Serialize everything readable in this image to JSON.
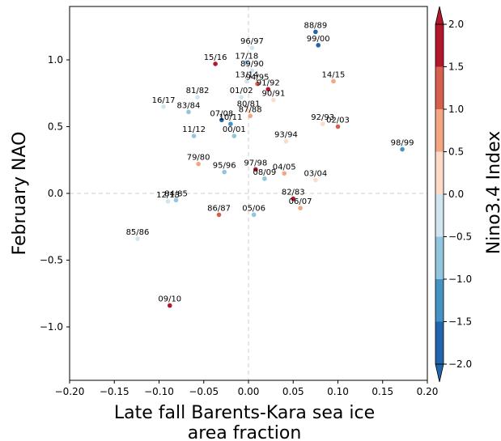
{
  "chart_data": {
    "type": "scatter",
    "title": "",
    "xlabel_line1": "Late fall Barents-Kara sea ice",
    "xlabel_line2": "area fraction",
    "ylabel": "February NAO",
    "colorbar_label": "Nino3.4 Index",
    "xlim": [
      -0.2,
      0.2
    ],
    "ylim": [
      -1.4,
      1.4
    ],
    "xticks": [
      -0.2,
      -0.15,
      -0.1,
      -0.05,
      0.0,
      0.05,
      0.1,
      0.15,
      0.2
    ],
    "xtick_labels": [
      "−0.20",
      "−0.15",
      "−0.10",
      "−0.05",
      "0.00",
      "0.05",
      "0.10",
      "0.15",
      "0.20"
    ],
    "yticks": [
      -1.0,
      -0.5,
      0.0,
      0.5,
      1.0
    ],
    "ytick_labels": [
      "−1.0",
      "−0.5",
      "0.0",
      "0.5",
      "1.0"
    ],
    "zero_lines": "dashed",
    "colorbar_ticks": [
      -2.0,
      -1.5,
      -1.0,
      -0.5,
      0.0,
      0.5,
      1.0,
      1.5,
      2.0
    ],
    "colorbar_tick_labels": [
      "−2.0",
      "−1.5",
      "−1.0",
      "−0.5",
      "0.0",
      "0.5",
      "1.0",
      "1.5",
      "2.0"
    ],
    "colorbar_colors": [
      "#2166ac",
      "#4393c3",
      "#92c5de",
      "#d1e5f0",
      "#fddbc7",
      "#f4a582",
      "#d6604d",
      "#b2182b"
    ],
    "colorbar_extend_low": "#2166ac",
    "colorbar_extend_high": "#b2182b",
    "points": [
      {
        "label": "88/89",
        "x": 0.075,
        "y": 1.21,
        "nino": -1.8
      },
      {
        "label": "99/00",
        "x": 0.078,
        "y": 1.11,
        "nino": -1.6
      },
      {
        "label": "96/97",
        "x": 0.004,
        "y": 1.09,
        "nino": -0.4
      },
      {
        "label": "17/18",
        "x": -0.002,
        "y": 0.98,
        "nino": -0.6
      },
      {
        "label": "15/16",
        "x": -0.037,
        "y": 0.97,
        "nino": 2.2
      },
      {
        "label": "89/90",
        "x": 0.004,
        "y": 0.92,
        "nino": -0.1
      },
      {
        "label": "13/14",
        "x": -0.002,
        "y": 0.84,
        "nino": -0.3
      },
      {
        "label": "94/95",
        "x": 0.01,
        "y": 0.82,
        "nino": 1.2
      },
      {
        "label": "14/15",
        "x": 0.095,
        "y": 0.84,
        "nino": 0.6
      },
      {
        "label": "91/92",
        "x": 0.022,
        "y": 0.78,
        "nino": 1.7
      },
      {
        "label": "81/82",
        "x": -0.057,
        "y": 0.72,
        "nino": -0.1
      },
      {
        "label": "90/91",
        "x": 0.028,
        "y": 0.7,
        "nino": 0.3
      },
      {
        "label": "01/02",
        "x": -0.008,
        "y": 0.72,
        "nino": -0.2
      },
      {
        "label": "16/17",
        "x": -0.095,
        "y": 0.65,
        "nino": -0.3
      },
      {
        "label": "80/81",
        "x": 0.0,
        "y": 0.62,
        "nino": 0.2
      },
      {
        "label": "83/84",
        "x": -0.067,
        "y": 0.61,
        "nino": -0.6
      },
      {
        "label": "87/88",
        "x": 0.002,
        "y": 0.58,
        "nino": 0.8
      },
      {
        "label": "07/08",
        "x": -0.03,
        "y": 0.55,
        "nino": -1.6
      },
      {
        "label": "92/93",
        "x": 0.083,
        "y": 0.52,
        "nino": 0.4
      },
      {
        "label": "10/11",
        "x": -0.02,
        "y": 0.52,
        "nino": -1.5
      },
      {
        "label": "02/03",
        "x": 0.1,
        "y": 0.5,
        "nino": 1.1
      },
      {
        "label": "11/12",
        "x": -0.061,
        "y": 0.43,
        "nino": -0.8
      },
      {
        "label": "00/01",
        "x": -0.016,
        "y": 0.43,
        "nino": -0.7
      },
      {
        "label": "93/94",
        "x": 0.042,
        "y": 0.39,
        "nino": 0.1
      },
      {
        "label": "98/99",
        "x": 0.172,
        "y": 0.33,
        "nino": -1.1
      },
      {
        "label": "79/80",
        "x": -0.056,
        "y": 0.22,
        "nino": 0.6
      },
      {
        "label": "97/98",
        "x": 0.008,
        "y": 0.18,
        "nino": 2.2
      },
      {
        "label": "95/96",
        "x": -0.027,
        "y": 0.16,
        "nino": -0.9
      },
      {
        "label": "04/05",
        "x": 0.04,
        "y": 0.15,
        "nino": 0.7
      },
      {
        "label": "08/09",
        "x": 0.018,
        "y": 0.11,
        "nino": -0.8
      },
      {
        "label": "03/04",
        "x": 0.075,
        "y": 0.1,
        "nino": 0.4
      },
      {
        "label": "82/83",
        "x": 0.05,
        "y": -0.04,
        "nino": 2.1
      },
      {
        "label": "12/13",
        "x": -0.09,
        "y": -0.06,
        "nino": -0.2
      },
      {
        "label": "84/85",
        "x": -0.081,
        "y": -0.05,
        "nino": -0.9
      },
      {
        "label": "06/07",
        "x": 0.058,
        "y": -0.11,
        "nino": 0.9
      },
      {
        "label": "05/06",
        "x": 0.006,
        "y": -0.16,
        "nino": -0.8
      },
      {
        "label": "86/87",
        "x": -0.033,
        "y": -0.16,
        "nino": 1.2
      },
      {
        "label": "85/86",
        "x": -0.124,
        "y": -0.34,
        "nino": -0.4
      },
      {
        "label": "09/10",
        "x": -0.088,
        "y": -0.84,
        "nino": 1.7
      }
    ]
  }
}
